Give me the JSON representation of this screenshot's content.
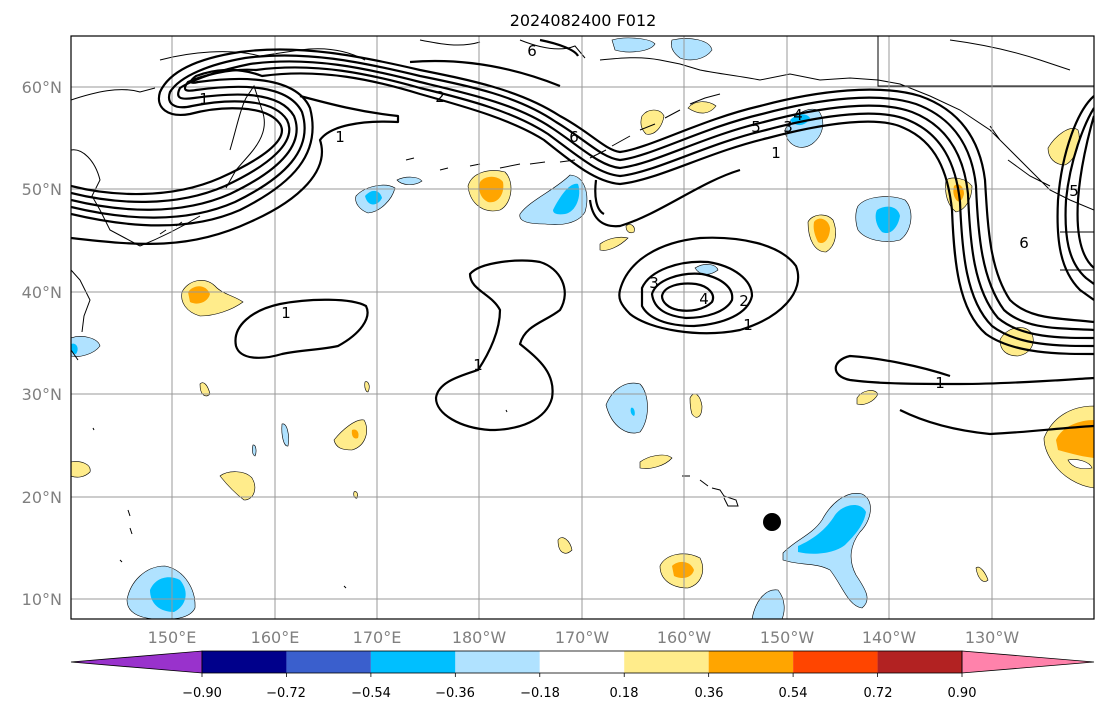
{
  "title": "2024082400 F012",
  "map": {
    "lon_labels": [
      "150°E",
      "160°E",
      "170°E",
      "180°W",
      "170°W",
      "160°W",
      "150°W",
      "140°W",
      "130°W"
    ],
    "lat_labels": [
      "60°N",
      "50°N",
      "40°N",
      "30°N",
      "20°N",
      "10°N"
    ],
    "contour_labels": [
      "6",
      "2",
      "1",
      "1",
      "6",
      "5",
      "4",
      "3",
      "1",
      "1",
      "4",
      "3",
      "2",
      "1",
      "1",
      "1",
      "5",
      "6"
    ],
    "marker": {
      "name": "storm-center-marker",
      "lon": -151.5,
      "lat": 17.5
    }
  },
  "colorbar": {
    "ticks": [
      "−0.90",
      "−0.72",
      "−0.54",
      "−0.36",
      "−0.18",
      "0.18",
      "0.36",
      "0.54",
      "0.72",
      "0.90"
    ],
    "colors": [
      "#9932cc",
      "#00008b",
      "#3a5fcd",
      "#00bfff",
      "#b0e2ff",
      "#ffffff",
      "#ffec8b",
      "#ffa500",
      "#ff4500",
      "#b22222",
      "#ff82ab"
    ]
  },
  "colors": {
    "grid": "#999999",
    "contour": "#000000",
    "neg_light": "#b0e2ff",
    "neg_mid": "#00bfff",
    "pos_light": "#ffec8b",
    "pos_mid": "#ffa500"
  }
}
